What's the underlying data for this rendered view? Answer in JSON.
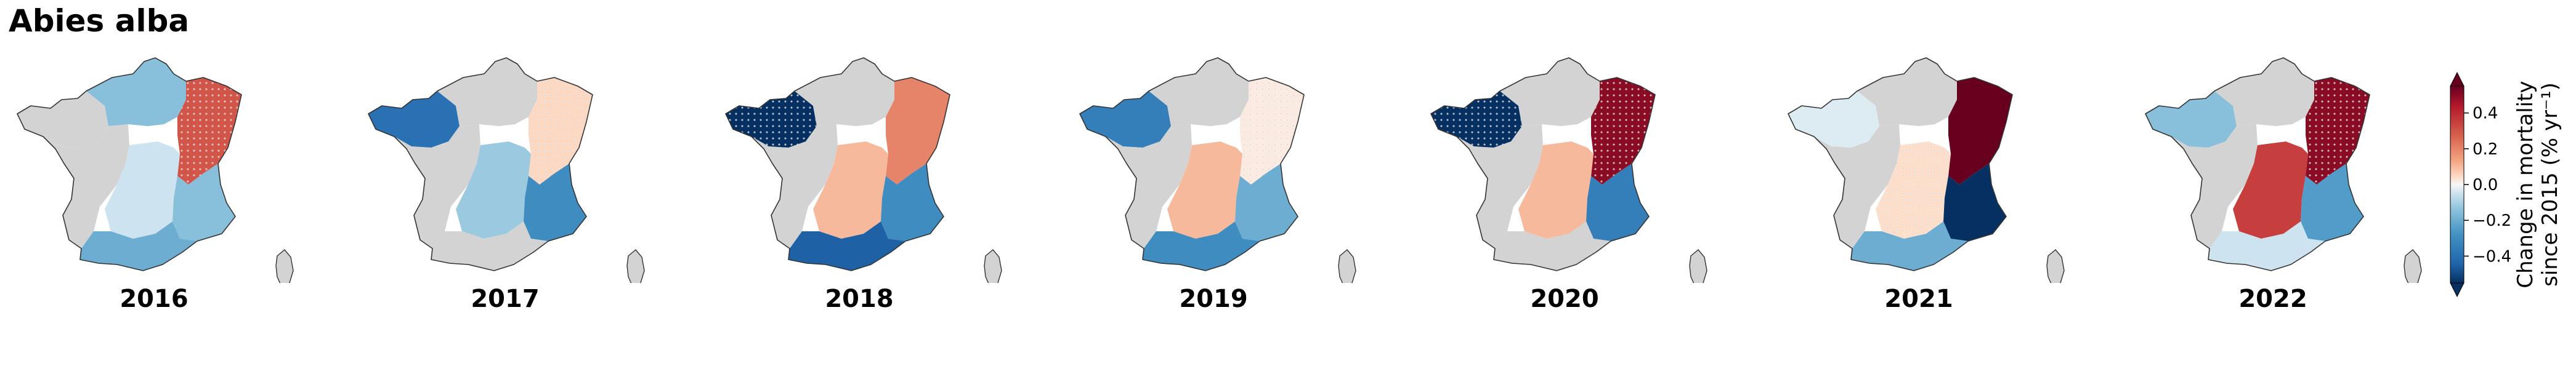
{
  "title": "Abies alba",
  "colors": {
    "no_data": "#d3d3d3",
    "outline": "#333333"
  },
  "colorbar": {
    "label_line1": "Change in mortality",
    "label_line2": "since 2015 (% yr⁻¹)",
    "min": -0.55,
    "max": 0.55,
    "ticks": [
      {
        "value": 0.4,
        "label": "0.4"
      },
      {
        "value": 0.2,
        "label": "0.2"
      },
      {
        "value": 0.0,
        "label": "0.0"
      },
      {
        "value": -0.2,
        "label": "−0.2"
      },
      {
        "value": -0.4,
        "label": "−0.4"
      }
    ],
    "extend": "both",
    "colormap": "RdBu_r"
  },
  "panels": [
    {
      "year": "2016",
      "regions": {
        "bretagne": {
          "value": 0.0,
          "has_data": false
        },
        "north": {
          "value": -0.15,
          "has_data": true
        },
        "northeast": {
          "value": 0.3,
          "has_data": true,
          "significant": true
        },
        "center": {
          "value": 0.0,
          "has_data": false
        },
        "massif_central": {
          "value": -0.05,
          "has_data": true
        },
        "alps": {
          "value": -0.15,
          "has_data": true
        },
        "pyrenees": {
          "value": -0.2,
          "has_data": true
        }
      }
    },
    {
      "year": "2017",
      "regions": {
        "bretagne": {
          "value": -0.4,
          "has_data": true
        },
        "north": {
          "value": 0.0,
          "has_data": false
        },
        "northeast": {
          "value": 0.05,
          "has_data": true,
          "significant": true
        },
        "center": {
          "value": 0.0,
          "has_data": false
        },
        "massif_central": {
          "value": -0.12,
          "has_data": true
        },
        "alps": {
          "value": -0.3,
          "has_data": true
        },
        "pyrenees": {
          "value": 0.0,
          "has_data": false
        }
      }
    },
    {
      "year": "2018",
      "regions": {
        "bretagne": {
          "value": -0.55,
          "has_data": true,
          "significant": true
        },
        "north": {
          "value": 0.0,
          "has_data": false
        },
        "northeast": {
          "value": 0.2,
          "has_data": true
        },
        "center": {
          "value": 0.0,
          "has_data": false
        },
        "massif_central": {
          "value": 0.1,
          "has_data": true
        },
        "alps": {
          "value": -0.3,
          "has_data": true
        },
        "pyrenees": {
          "value": -0.45,
          "has_data": true
        }
      }
    },
    {
      "year": "2019",
      "regions": {
        "bretagne": {
          "value": -0.35,
          "has_data": true
        },
        "north": {
          "value": 0.0,
          "has_data": false
        },
        "northeast": {
          "value": 0.02,
          "has_data": true,
          "significant": true
        },
        "center": {
          "value": 0.0,
          "has_data": false
        },
        "massif_central": {
          "value": 0.1,
          "has_data": true
        },
        "alps": {
          "value": -0.2,
          "has_data": true
        },
        "pyrenees": {
          "value": -0.3,
          "has_data": true
        }
      }
    },
    {
      "year": "2020",
      "regions": {
        "bretagne": {
          "value": -0.55,
          "has_data": true,
          "significant": true
        },
        "north": {
          "value": 0.0,
          "has_data": false
        },
        "northeast": {
          "value": 0.5,
          "has_data": true,
          "significant": true
        },
        "center": {
          "value": 0.0,
          "has_data": false
        },
        "massif_central": {
          "value": 0.1,
          "has_data": true
        },
        "alps": {
          "value": -0.35,
          "has_data": true
        },
        "pyrenees": {
          "value": 0.0,
          "has_data": false
        }
      }
    },
    {
      "year": "2021",
      "regions": {
        "bretagne": {
          "value": -0.03,
          "has_data": true
        },
        "north": {
          "value": 0.0,
          "has_data": false
        },
        "northeast": {
          "value": 0.55,
          "has_data": true
        },
        "center": {
          "value": 0.0,
          "has_data": false
        },
        "massif_central": {
          "value": 0.04,
          "has_data": true,
          "significant": true
        },
        "alps": {
          "value": -0.55,
          "has_data": true
        },
        "pyrenees": {
          "value": -0.2,
          "has_data": true
        }
      }
    },
    {
      "year": "2022",
      "regions": {
        "bretagne": {
          "value": -0.15,
          "has_data": true
        },
        "north": {
          "value": 0.0,
          "has_data": false
        },
        "northeast": {
          "value": 0.5,
          "has_data": true,
          "significant": true
        },
        "center": {
          "value": 0.0,
          "has_data": false
        },
        "massif_central": {
          "value": 0.35,
          "has_data": true
        },
        "alps": {
          "value": -0.25,
          "has_data": true
        },
        "pyrenees": {
          "value": -0.05,
          "has_data": true
        }
      }
    }
  ]
}
